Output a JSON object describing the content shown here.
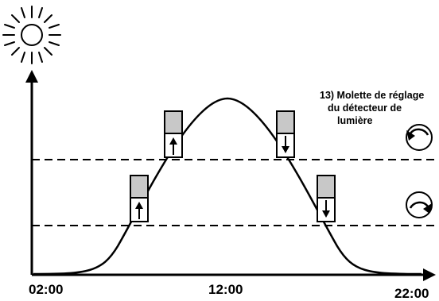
{
  "annotation": {
    "line1": "13) Molette de réglage",
    "line2": "du détecteur de",
    "line3": "lumière"
  },
  "x_axis": {
    "tick_labels": [
      "02:00",
      "12:00",
      "22:00"
    ]
  },
  "icons": {
    "sun": "sun-icon",
    "rotate_left": "rotate-left-icon",
    "rotate_right": "rotate-right-icon",
    "arrow_up": "arrow-up-icon",
    "arrow_down": "arrow-down-icon"
  },
  "colors": {
    "line": "#000000",
    "sensor_fill": "#c8c8c8",
    "background": "#ffffff"
  }
}
